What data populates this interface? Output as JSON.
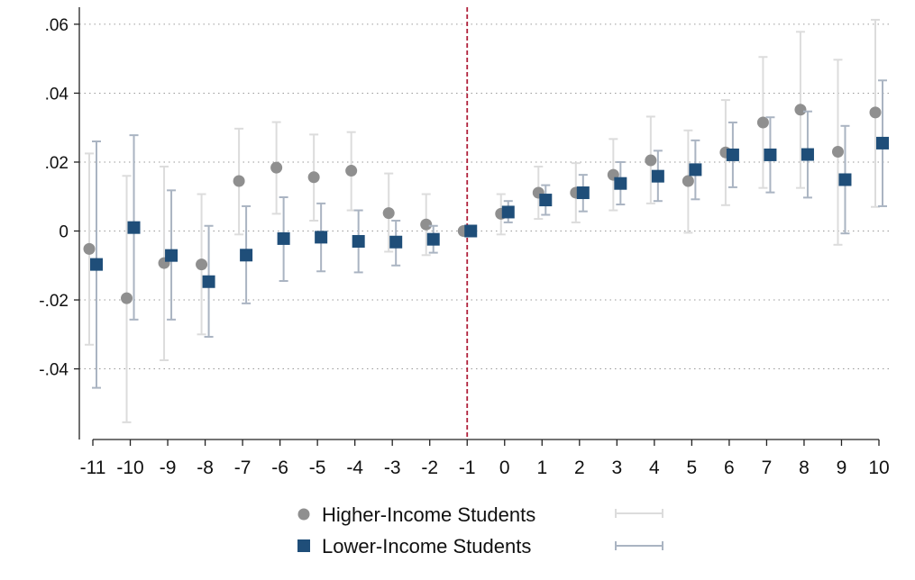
{
  "chart_data": {
    "type": "scatter",
    "title": "",
    "xlabel": "",
    "ylabel": "",
    "x": [
      -11,
      -10,
      -9,
      -8,
      -7,
      -6,
      -5,
      -4,
      -3,
      -2,
      -1,
      0,
      1,
      2,
      3,
      4,
      5,
      6,
      7,
      8,
      9,
      10
    ],
    "x_tick_labels": [
      "-11",
      "-10",
      "-9",
      "-8",
      "-7",
      "-6",
      "-5",
      "-4",
      "-3",
      "-2",
      "-1",
      "0",
      "1",
      "2",
      "3",
      "4",
      "5",
      "6",
      "7",
      "8",
      "9",
      "10"
    ],
    "y_ticks": [
      0.06,
      0.04,
      0.02,
      0,
      -0.02,
      -0.04
    ],
    "y_tick_labels": [
      ".06",
      ".04",
      ".02",
      "0",
      "-.02",
      "-.04"
    ],
    "xlim": [
      -11,
      10
    ],
    "ylim": [
      -0.0605,
      0.0605
    ],
    "grid": "horizontal dotted",
    "reference_line": {
      "x": -1,
      "style": "dashed",
      "color": "#b0203a"
    },
    "legend_position": "bottom",
    "series": [
      {
        "name": "Higher-Income Students",
        "marker": "circle",
        "color": "#8f8f8f",
        "ci_color": "#dcdcdc",
        "values": [
          -0.0052,
          -0.0195,
          -0.0093,
          -0.0097,
          0.0145,
          0.0184,
          0.0156,
          0.0175,
          0.0052,
          0.0019,
          0.0,
          0.005,
          0.0111,
          0.0111,
          0.0163,
          0.0205,
          0.0145,
          0.0228,
          0.0315,
          0.0352,
          0.023,
          0.0344
        ],
        "ci_low": [
          -0.033,
          -0.0555,
          -0.0375,
          -0.03,
          -0.001,
          0.005,
          0.003,
          0.006,
          -0.006,
          -0.007,
          0.0,
          -0.001,
          0.0035,
          0.0025,
          0.006,
          0.008,
          -0.0005,
          0.0075,
          0.0125,
          0.0125,
          -0.004,
          0.007
        ],
        "ci_high": [
          0.0225,
          0.016,
          0.0187,
          0.0107,
          0.0297,
          0.0316,
          0.028,
          0.0287,
          0.0167,
          0.0107,
          0.0,
          0.0107,
          0.0187,
          0.0197,
          0.0267,
          0.0332,
          0.0292,
          0.038,
          0.0505,
          0.0578,
          0.0497,
          0.0613
        ]
      },
      {
        "name": "Lower-Income Students",
        "marker": "square",
        "color": "#1f4e79",
        "ci_color": "#aab4c2",
        "values": [
          -0.0097,
          0.001,
          -0.0071,
          -0.0147,
          -0.007,
          -0.0022,
          -0.0018,
          -0.003,
          -0.0032,
          -0.0024,
          0.0,
          0.0055,
          0.009,
          0.0111,
          0.0138,
          0.0159,
          0.0178,
          0.0221,
          0.0221,
          0.0222,
          0.0149,
          0.0255
        ],
        "ci_low": [
          -0.0455,
          -0.0257,
          -0.0257,
          -0.0307,
          -0.021,
          -0.0145,
          -0.0117,
          -0.012,
          -0.01,
          -0.0063,
          0.0,
          0.0025,
          0.0047,
          0.0057,
          0.0077,
          0.0087,
          0.0092,
          0.0127,
          0.0112,
          0.0097,
          -0.0007,
          0.0072
        ],
        "ci_high": [
          0.026,
          0.0278,
          0.0118,
          0.0015,
          0.0072,
          0.0098,
          0.008,
          0.006,
          0.003,
          0.0015,
          0.0,
          0.0087,
          0.0133,
          0.0163,
          0.02,
          0.0233,
          0.0263,
          0.0315,
          0.033,
          0.0347,
          0.0305,
          0.0437
        ]
      }
    ]
  }
}
